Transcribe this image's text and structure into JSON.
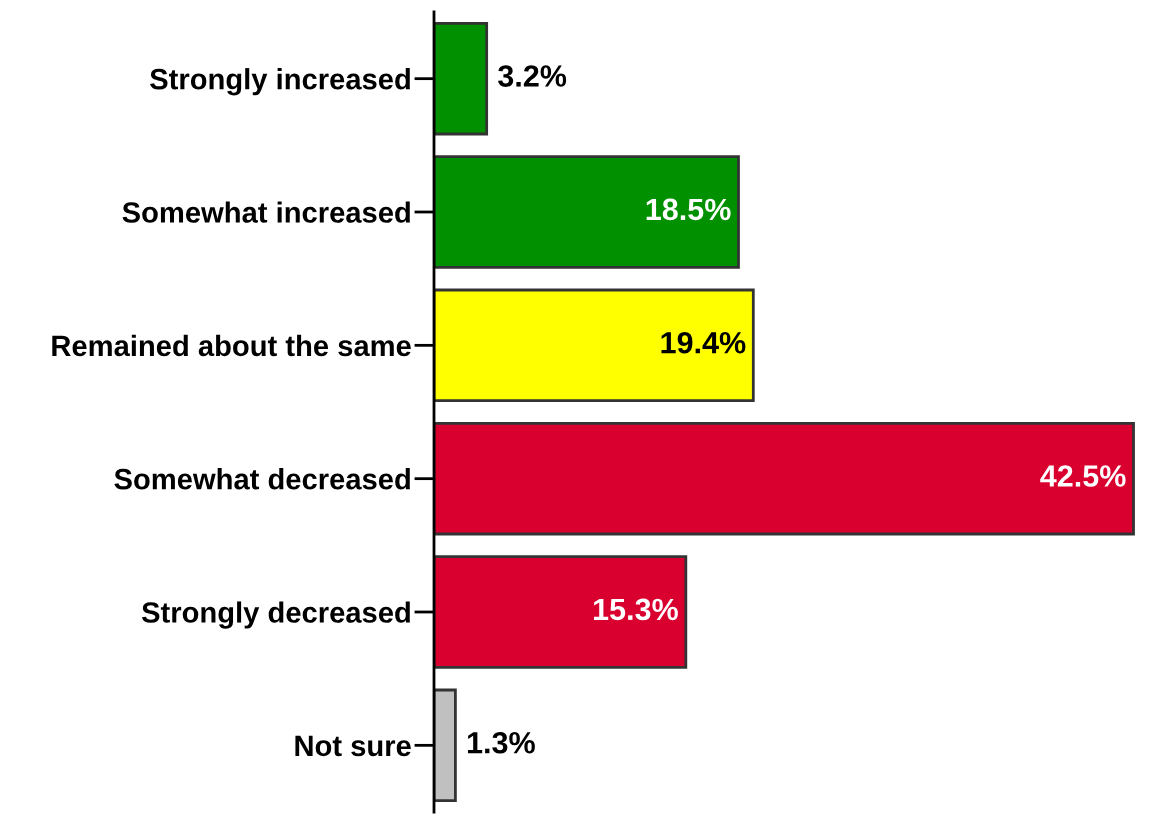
{
  "chart_data": {
    "type": "bar",
    "orientation": "horizontal",
    "categories": [
      "Strongly increased",
      "Somewhat increased",
      "Remained about the same",
      "Somewhat decreased",
      "Strongly decreased",
      "Not sure"
    ],
    "values": [
      3.2,
      18.5,
      19.4,
      42.5,
      15.3,
      1.3
    ],
    "colors": [
      "#009000",
      "#009000",
      "#ffff00",
      "#d90030",
      "#d90030",
      "#c0c0c0"
    ],
    "value_labels": [
      "3.2%",
      "18.5%",
      "19.4%",
      "42.5%",
      "15.3%",
      "1.3%"
    ],
    "tick_labels": "y"
  }
}
